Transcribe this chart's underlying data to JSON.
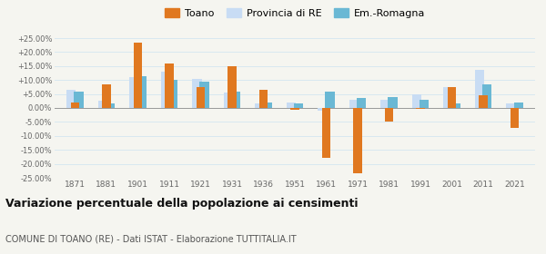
{
  "years": [
    1871,
    1881,
    1901,
    1911,
    1921,
    1931,
    1936,
    1951,
    1961,
    1971,
    1981,
    1991,
    2001,
    2011,
    2021
  ],
  "toano": [
    2.0,
    8.5,
    23.5,
    15.8,
    7.5,
    14.8,
    6.5,
    -0.5,
    -18.0,
    -23.5,
    -5.0,
    -0.3,
    7.5,
    4.5,
    -7.0
  ],
  "provincia_re": [
    6.5,
    2.5,
    11.0,
    13.0,
    10.5,
    5.5,
    1.5,
    2.0,
    -1.0,
    3.0,
    3.0,
    5.0,
    7.5,
    13.5,
    1.5
  ],
  "emromagna": [
    6.0,
    1.5,
    11.5,
    10.0,
    9.5,
    6.0,
    2.0,
    1.5,
    6.0,
    3.5,
    4.0,
    3.0,
    1.5,
    8.5,
    2.0
  ],
  "toano_color": "#e07820",
  "provincia_color": "#c8dcf4",
  "emromagna_color": "#6ab8d4",
  "title": "Variazione percentuale della popolazione ai censimenti",
  "subtitle": "COMUNE DI TOANO (RE) - Dati ISTAT - Elaborazione TUTTITALIA.IT",
  "ylim": [
    -25,
    25
  ],
  "yticks": [
    -25,
    -20,
    -15,
    -10,
    -5,
    0,
    5,
    10,
    15,
    20,
    25
  ],
  "background_color": "#f5f5f0",
  "grid_color": "#d8e8f0"
}
